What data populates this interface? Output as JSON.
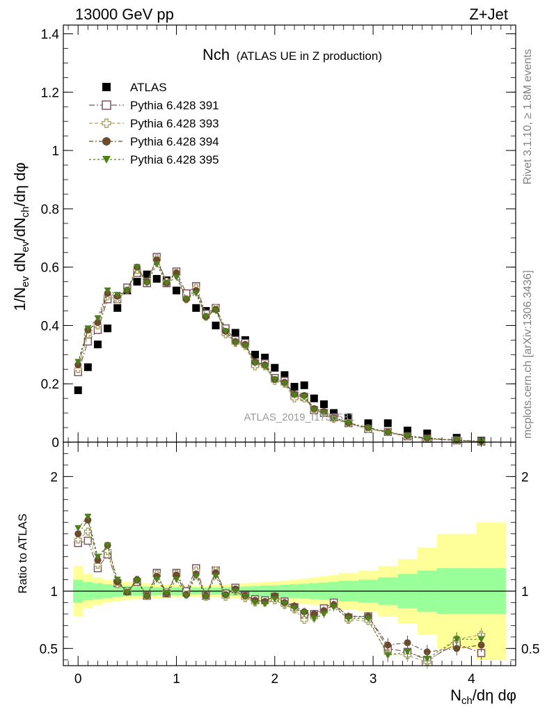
{
  "header": {
    "energy_label": "13000 GeV pp",
    "process_label": "Z+Jet"
  },
  "side": {
    "rivet_label": "Rivet 3.1.10, ≥ 1.8M events",
    "mcplots_label": "mcplots.cern.ch [arXiv:1306.3436]"
  },
  "chart_data": [
    {
      "type": "scatter",
      "panel": "main",
      "title_main": "Nch",
      "title_sub": "(ATLAS UE in Z production)",
      "watermark": "ATLAS_2019_I1736531",
      "ylabel": "1/N_ev dN_ch/dN_ch/dη dφ",
      "xlim": [
        -0.15,
        4.45
      ],
      "ylim": [
        0,
        1.43
      ],
      "yticks": [
        0,
        0.2,
        0.4,
        0.6,
        0.8,
        1,
        1.2,
        1.4
      ],
      "ytick_labels": [
        "0",
        "0.2",
        "0.4",
        "0.6",
        "0.8",
        "1",
        "1.2",
        "1.4"
      ],
      "legend_position": "top-left",
      "x": [
        0.0,
        0.1,
        0.2,
        0.3,
        0.4,
        0.5,
        0.6,
        0.7,
        0.8,
        0.9,
        1.0,
        1.1,
        1.2,
        1.3,
        1.4,
        1.5,
        1.6,
        1.7,
        1.8,
        1.9,
        2.0,
        2.1,
        2.2,
        2.3,
        2.4,
        2.5,
        2.6,
        2.75,
        2.95,
        3.15,
        3.35,
        3.55,
        3.85,
        4.1
      ],
      "series": [
        {
          "name": "ATLAS",
          "marker": "square-filled",
          "color": "#000000",
          "values": [
            0.178,
            0.257,
            0.335,
            0.39,
            0.46,
            0.52,
            0.55,
            0.575,
            0.56,
            0.555,
            0.52,
            0.51,
            0.46,
            0.45,
            0.4,
            0.39,
            0.375,
            0.35,
            0.3,
            0.29,
            0.255,
            0.23,
            0.19,
            0.195,
            0.15,
            0.13,
            0.1,
            0.085,
            0.065,
            0.065,
            0.04,
            0.03,
            0.015,
            0.005
          ]
        },
        {
          "name": "Pythia 6.428 391",
          "marker": "square-open",
          "color": "#7a5566",
          "values": [
            0.24,
            0.345,
            0.385,
            0.49,
            0.49,
            0.53,
            0.58,
            0.545,
            0.635,
            0.545,
            0.585,
            0.51,
            0.535,
            0.44,
            0.46,
            0.39,
            0.35,
            0.34,
            0.27,
            0.27,
            0.22,
            0.21,
            0.16,
            0.155,
            0.11,
            0.1,
            0.085,
            0.065,
            0.045,
            0.035,
            0.02,
            0.012,
            0.006,
            0.002
          ]
        },
        {
          "name": "Pythia 6.428 393",
          "marker": "cross-open",
          "color": "#a9a165",
          "values": [
            0.25,
            0.37,
            0.4,
            0.5,
            0.49,
            0.52,
            0.59,
            0.55,
            0.63,
            0.55,
            0.58,
            0.49,
            0.53,
            0.43,
            0.46,
            0.37,
            0.34,
            0.33,
            0.26,
            0.26,
            0.21,
            0.2,
            0.15,
            0.15,
            0.11,
            0.1,
            0.08,
            0.065,
            0.045,
            0.035,
            0.02,
            0.012,
            0.006,
            0.002
          ]
        },
        {
          "name": "Pythia 6.428 394",
          "marker": "circle-filled",
          "color": "#6b4a2f",
          "values": [
            0.265,
            0.385,
            0.41,
            0.51,
            0.5,
            0.52,
            0.6,
            0.55,
            0.625,
            0.545,
            0.58,
            0.49,
            0.52,
            0.43,
            0.455,
            0.38,
            0.345,
            0.335,
            0.275,
            0.265,
            0.215,
            0.205,
            0.165,
            0.16,
            0.115,
            0.105,
            0.085,
            0.066,
            0.05,
            0.035,
            0.022,
            0.014,
            0.007,
            0.003
          ]
        },
        {
          "name": "Pythia 6.428 395",
          "marker": "triangle-down-filled",
          "color": "#4d7f1a",
          "values": [
            0.275,
            0.39,
            0.425,
            0.52,
            0.505,
            0.52,
            0.6,
            0.545,
            0.61,
            0.545,
            0.565,
            0.49,
            0.51,
            0.43,
            0.45,
            0.38,
            0.34,
            0.33,
            0.27,
            0.26,
            0.215,
            0.2,
            0.16,
            0.155,
            0.11,
            0.1,
            0.08,
            0.065,
            0.048,
            0.032,
            0.02,
            0.012,
            0.006,
            0.002
          ]
        }
      ]
    },
    {
      "type": "scatter",
      "panel": "ratio",
      "ylabel": "Ratio to ATLAS",
      "xlabel": "N_ch/dη dφ",
      "xlim": [
        -0.15,
        4.45
      ],
      "ylim": [
        0.35,
        2.3
      ],
      "scale": "linear",
      "xticks": [
        0,
        1,
        2,
        3,
        4
      ],
      "xtick_labels": [
        "0",
        "1",
        "2",
        "3",
        "4"
      ],
      "yticks": [
        0.5,
        1,
        2
      ],
      "ytick_labels": [
        "0.5",
        "1",
        "2"
      ],
      "band_colors": {
        "inner": "#99ff99",
        "outer": "#ffff99"
      },
      "bands": {
        "edges": [
          -0.05,
          0.05,
          0.15,
          0.25,
          0.35,
          0.45,
          0.55,
          0.65,
          0.75,
          0.85,
          0.95,
          1.05,
          1.15,
          1.25,
          1.35,
          1.45,
          1.55,
          1.65,
          1.75,
          1.85,
          1.95,
          2.05,
          2.15,
          2.25,
          2.35,
          2.45,
          2.55,
          2.65,
          2.85,
          3.05,
          3.25,
          3.45,
          3.65,
          4.05,
          4.35
        ],
        "inner": [
          0.1,
          0.08,
          0.07,
          0.06,
          0.05,
          0.045,
          0.04,
          0.04,
          0.035,
          0.035,
          0.035,
          0.03,
          0.03,
          0.03,
          0.03,
          0.035,
          0.04,
          0.04,
          0.045,
          0.05,
          0.05,
          0.055,
          0.06,
          0.065,
          0.07,
          0.075,
          0.08,
          0.09,
          0.1,
          0.12,
          0.15,
          0.18,
          0.2,
          0.2
        ],
        "outer": [
          0.22,
          0.15,
          0.12,
          0.1,
          0.09,
          0.08,
          0.07,
          0.07,
          0.06,
          0.06,
          0.055,
          0.05,
          0.05,
          0.05,
          0.055,
          0.06,
          0.065,
          0.07,
          0.075,
          0.08,
          0.085,
          0.09,
          0.1,
          0.11,
          0.12,
          0.13,
          0.14,
          0.16,
          0.18,
          0.22,
          0.28,
          0.38,
          0.5,
          0.6
        ]
      },
      "x": [
        0.0,
        0.1,
        0.2,
        0.3,
        0.4,
        0.5,
        0.6,
        0.7,
        0.8,
        0.9,
        1.0,
        1.1,
        1.2,
        1.3,
        1.4,
        1.5,
        1.6,
        1.7,
        1.8,
        1.9,
        2.0,
        2.1,
        2.2,
        2.3,
        2.4,
        2.5,
        2.6,
        2.75,
        2.95,
        3.15,
        3.35,
        3.55,
        3.85,
        4.1
      ],
      "series": [
        {
          "name": "Pythia 6.428 391",
          "marker": "square-open",
          "color": "#7a5566",
          "values": [
            1.42,
            1.44,
            1.2,
            1.32,
            1.07,
            1.0,
            1.08,
            0.96,
            1.16,
            0.98,
            1.16,
            1.0,
            1.2,
            0.96,
            1.18,
            0.98,
            1.03,
            0.96,
            0.93,
            0.92,
            0.95,
            0.91,
            0.86,
            0.8,
            0.8,
            0.85,
            0.9,
            0.77,
            0.78,
            0.5,
            0.47,
            0.4,
            0.54,
            0.46
          ]
        },
        {
          "name": "Pythia 6.428 393",
          "marker": "cross-open",
          "color": "#a9a165",
          "values": [
            1.45,
            1.52,
            1.23,
            1.35,
            1.06,
            1.0,
            1.1,
            0.96,
            1.15,
            0.99,
            1.15,
            0.97,
            1.18,
            0.95,
            1.18,
            0.95,
            1.0,
            0.94,
            0.9,
            0.9,
            0.92,
            0.88,
            0.84,
            0.75,
            0.77,
            0.82,
            0.88,
            0.75,
            0.74,
            0.46,
            0.44,
            0.38,
            0.58,
            0.62
          ]
        },
        {
          "name": "Pythia 6.428 394",
          "marker": "circle-filled",
          "color": "#6b4a2f",
          "values": [
            1.5,
            1.62,
            1.27,
            1.4,
            1.08,
            0.99,
            1.1,
            0.96,
            1.13,
            0.98,
            1.14,
            0.97,
            1.15,
            0.96,
            1.16,
            0.97,
            1.02,
            0.96,
            0.92,
            0.91,
            0.96,
            0.9,
            0.87,
            0.82,
            0.8,
            0.83,
            0.88,
            0.78,
            0.78,
            0.53,
            0.55,
            0.47,
            0.5,
            0.53
          ]
        },
        {
          "name": "Pythia 6.428 395",
          "marker": "triangle-down-filled",
          "color": "#4d7f1a",
          "values": [
            1.55,
            1.65,
            1.3,
            1.4,
            1.1,
            0.99,
            1.09,
            0.95,
            1.1,
            0.98,
            1.1,
            0.96,
            1.13,
            0.95,
            1.13,
            0.96,
            1.0,
            0.95,
            0.9,
            0.89,
            0.93,
            0.89,
            0.85,
            0.81,
            0.76,
            0.8,
            0.86,
            0.76,
            0.76,
            0.44,
            0.47,
            0.41,
            0.58,
            0.58
          ]
        }
      ]
    }
  ]
}
